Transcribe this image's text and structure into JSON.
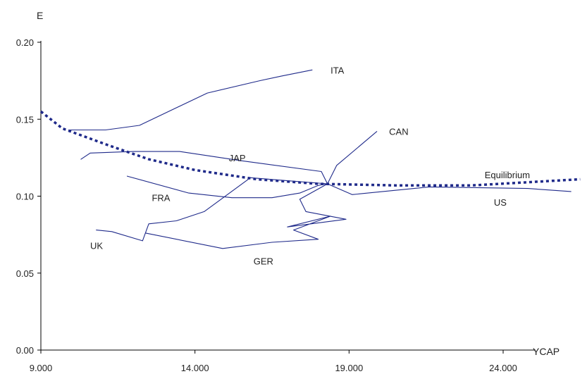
{
  "chart_data": {
    "type": "line",
    "title": "",
    "ylabel": "E",
    "xlabel": "YCAP",
    "xlim": [
      9000,
      26500
    ],
    "ylim": [
      0,
      0.2
    ],
    "xticks": [
      9000,
      14000,
      19000,
      24000
    ],
    "xtick_labels": [
      "9.000",
      "14.000",
      "19.000",
      "24.000"
    ],
    "yticks": [
      0,
      0.05,
      0.1,
      0.15,
      0.2
    ],
    "ytick_labels": [
      "0.00",
      "0.05",
      "0.10",
      "0.15",
      "0.20"
    ],
    "grid": false,
    "legend": "none",
    "line_color": "#1f2a8a",
    "series": [
      {
        "name": "ITA",
        "style": "solid",
        "points": [
          [
            9900,
            0.143
          ],
          [
            11100,
            0.143
          ],
          [
            12200,
            0.146
          ],
          [
            14400,
            0.167
          ],
          [
            16100,
            0.175
          ],
          [
            16800,
            0.178
          ],
          [
            17800,
            0.182
          ]
        ]
      },
      {
        "name": "CAN",
        "style": "solid",
        "points": [
          [
            18300,
            0.108
          ],
          [
            18600,
            0.12
          ],
          [
            19900,
            0.142
          ]
        ]
      },
      {
        "name": "JAP",
        "style": "solid",
        "points": [
          [
            10300,
            0.124
          ],
          [
            10600,
            0.128
          ],
          [
            12000,
            0.129
          ],
          [
            13500,
            0.129
          ],
          [
            15500,
            0.123
          ],
          [
            18100,
            0.116
          ],
          [
            18300,
            0.108
          ]
        ]
      },
      {
        "name": "US",
        "style": "solid",
        "points": [
          [
            18300,
            0.108
          ],
          [
            19100,
            0.101
          ],
          [
            21600,
            0.106
          ],
          [
            24800,
            0.105
          ],
          [
            26200,
            0.103
          ]
        ]
      },
      {
        "name": "FRA",
        "style": "solid",
        "points": [
          [
            11800,
            0.113
          ],
          [
            13800,
            0.102
          ],
          [
            15200,
            0.099
          ],
          [
            16500,
            0.099
          ],
          [
            17400,
            0.102
          ],
          [
            18000,
            0.107
          ],
          [
            18300,
            0.108
          ]
        ]
      },
      {
        "name": "GER",
        "style": "solid",
        "points": [
          [
            12400,
            0.076
          ],
          [
            14900,
            0.066
          ],
          [
            16500,
            0.07
          ],
          [
            18000,
            0.072
          ],
          [
            17200,
            0.078
          ],
          [
            18400,
            0.087
          ],
          [
            17000,
            0.08
          ],
          [
            18900,
            0.085
          ],
          [
            17600,
            0.09
          ],
          [
            17400,
            0.098
          ],
          [
            18300,
            0.108
          ]
        ]
      },
      {
        "name": "UK",
        "style": "solid",
        "points": [
          [
            10800,
            0.078
          ],
          [
            11300,
            0.077
          ],
          [
            12300,
            0.071
          ],
          [
            12500,
            0.082
          ],
          [
            13400,
            0.084
          ],
          [
            14300,
            0.09
          ],
          [
            15800,
            0.112
          ],
          [
            17000,
            0.11
          ],
          [
            18300,
            0.108
          ]
        ]
      },
      {
        "name": "Equilibrium",
        "style": "dotted",
        "points": [
          [
            9000,
            0.155
          ],
          [
            9700,
            0.144
          ],
          [
            11200,
            0.133
          ],
          [
            12500,
            0.124
          ],
          [
            14000,
            0.117
          ],
          [
            16000,
            0.111
          ],
          [
            18000,
            0.108
          ],
          [
            20500,
            0.107
          ],
          [
            23000,
            0.107
          ],
          [
            26500,
            0.111
          ]
        ]
      }
    ],
    "annotations": [
      {
        "text": "ITA",
        "x": 18400,
        "y": 0.182
      },
      {
        "text": "CAN",
        "x": 20300,
        "y": 0.142
      },
      {
        "text": "JAP",
        "x": 15100,
        "y": 0.125
      },
      {
        "text": "Equilibrium",
        "x": 23400,
        "y": 0.114
      },
      {
        "text": "FRA",
        "x": 12600,
        "y": 0.099
      },
      {
        "text": "US",
        "x": 23700,
        "y": 0.096
      },
      {
        "text": "UK",
        "x": 10600,
        "y": 0.068
      },
      {
        "text": "GER",
        "x": 15900,
        "y": 0.058
      }
    ]
  }
}
